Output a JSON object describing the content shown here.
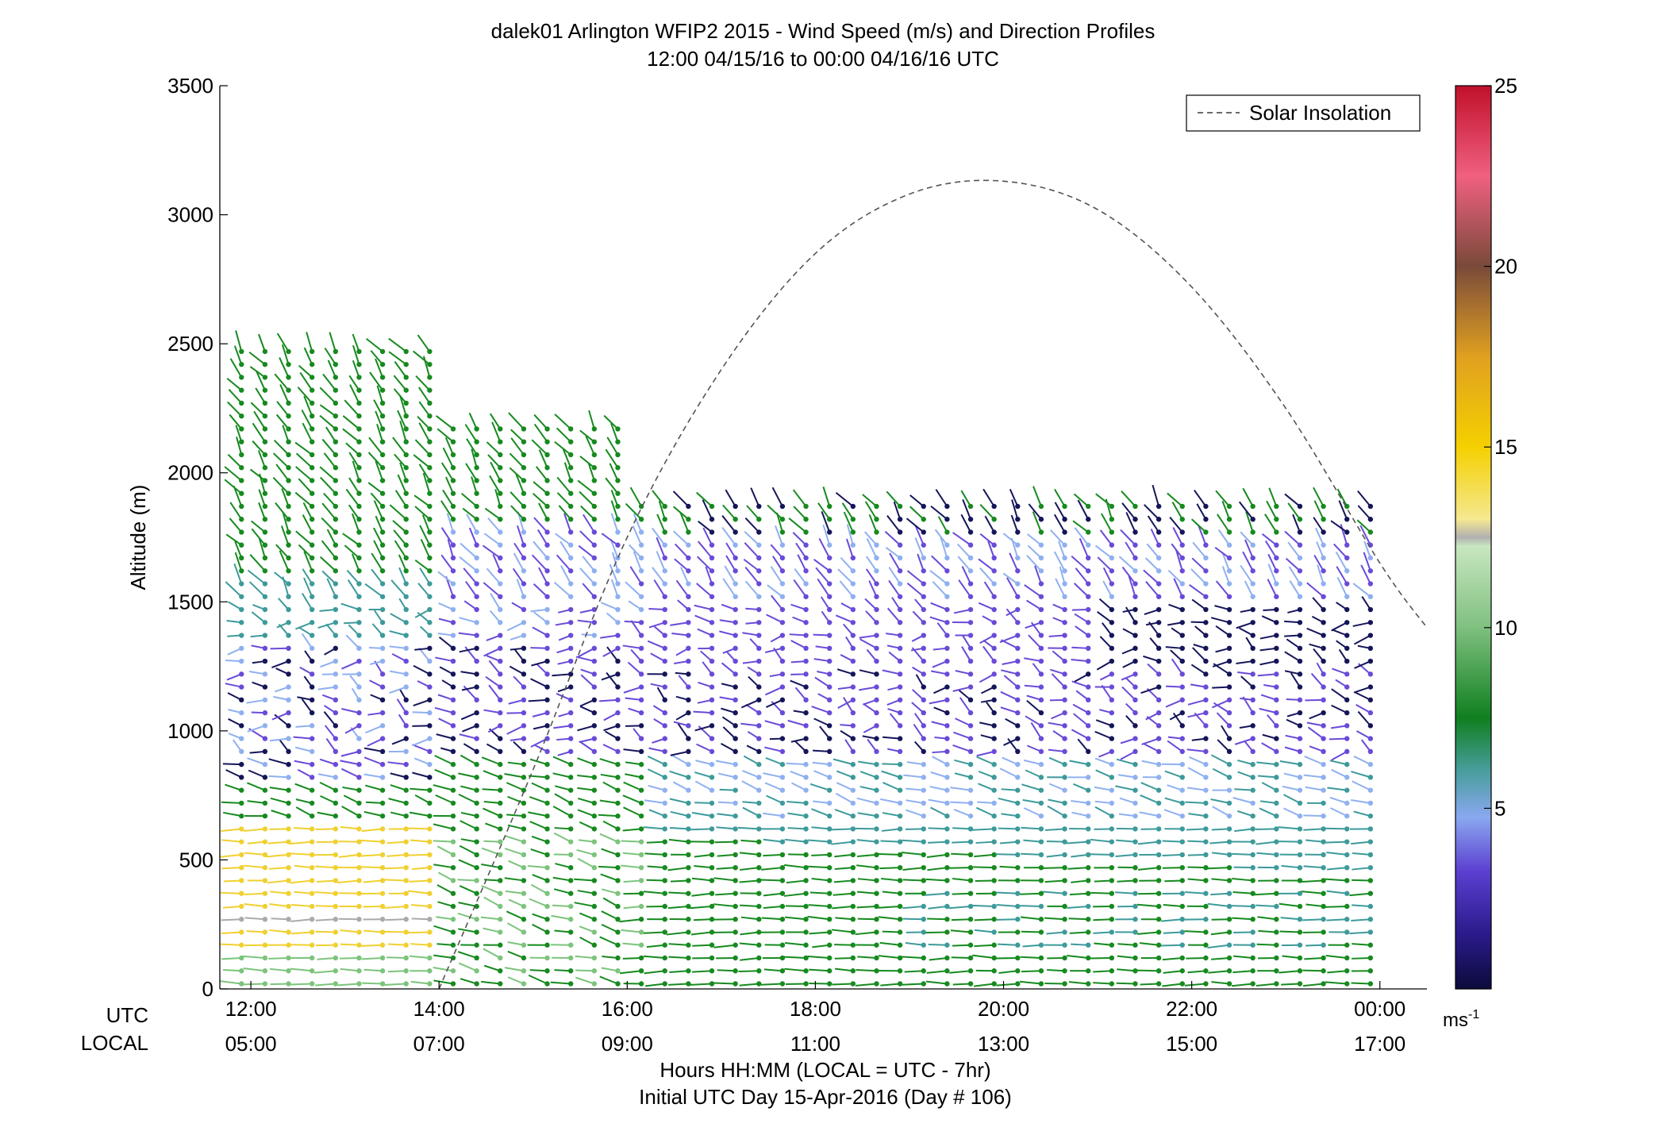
{
  "chart_data": {
    "type": "wind-barb-profile",
    "title": "dalek01 Arlington WFIP2 2015 - Wind Speed (m/s) and Direction Profiles",
    "subtitle": "12:00 04/15/16 to 00:00 04/16/16  UTC",
    "ylabel": "Altitude (m)",
    "xlabel": "Hours HH:MM  (LOCAL = UTC - 7hr)",
    "footnote": "Initial UTC Day 15-Apr-2016 (Day # 106)",
    "ylim": [
      0,
      3500
    ],
    "xlim_hours": [
      11.67,
      24.5
    ],
    "y_ticks": [
      "0",
      "500",
      "1000",
      "1500",
      "2000",
      "2500",
      "3000",
      "3500"
    ],
    "utc_row_label": "UTC",
    "local_row_label": "LOCAL",
    "x_ticks_utc": [
      "12:00",
      "14:00",
      "16:00",
      "18:00",
      "20:00",
      "22:00",
      "00:00"
    ],
    "x_ticks_local": [
      "05:00",
      "07:00",
      "09:00",
      "11:00",
      "13:00",
      "15:00",
      "17:00"
    ],
    "legend": {
      "entries": [
        "Solar Insolation"
      ],
      "placement": "top-right",
      "line_style": "dashed",
      "line_color": "#555555"
    },
    "colorbar": {
      "range": [
        0,
        25
      ],
      "ticks": [
        "5",
        "10",
        "15",
        "20",
        "25"
      ],
      "unit_label": "ms",
      "unit_exponent": "-1",
      "colors": [
        "#0b0b3b",
        "#2a1a8a",
        "#5b3fd0",
        "#8aa8f0",
        "#4a9ea0",
        "#0f7f1f",
        "#7fc07f",
        "#c8e6c0",
        "#b0b0b0",
        "#f5d000",
        "#e0a020",
        "#a06830",
        "#7a4a3a",
        "#f06080",
        "#c0102a"
      ]
    },
    "solar_insolation": {
      "description": "dashed curve, peak near 20:00 UTC",
      "hours": [
        14.0,
        15.0,
        16.0,
        17.0,
        18.0,
        19.0,
        20.0,
        21.0,
        22.0,
        23.0,
        24.0,
        24.5
      ],
      "altitude_equiv": [
        0,
        850,
        1750,
        2400,
        2850,
        3080,
        3130,
        3020,
        2720,
        2250,
        1650,
        1400
      ]
    },
    "wind_regions": [
      {
        "hours": [
          11.67,
          14.1
        ],
        "alt": [
          0,
          650
        ],
        "speed_ms": 14,
        "color_note": "yellow near-surface jet"
      },
      {
        "hours": [
          11.67,
          16.1
        ],
        "alt": [
          700,
          2550
        ],
        "speed_ms": 7,
        "color_note": "green upper flow"
      },
      {
        "hours": [
          15.0,
          24.0
        ],
        "alt": [
          600,
          1400
        ],
        "speed_ms": 2,
        "color_note": "purple/dark weak winds"
      },
      {
        "hours": [
          16.0,
          24.0
        ],
        "alt": [
          0,
          600
        ],
        "speed_ms": 8,
        "color_note": "green boundary layer"
      }
    ]
  }
}
